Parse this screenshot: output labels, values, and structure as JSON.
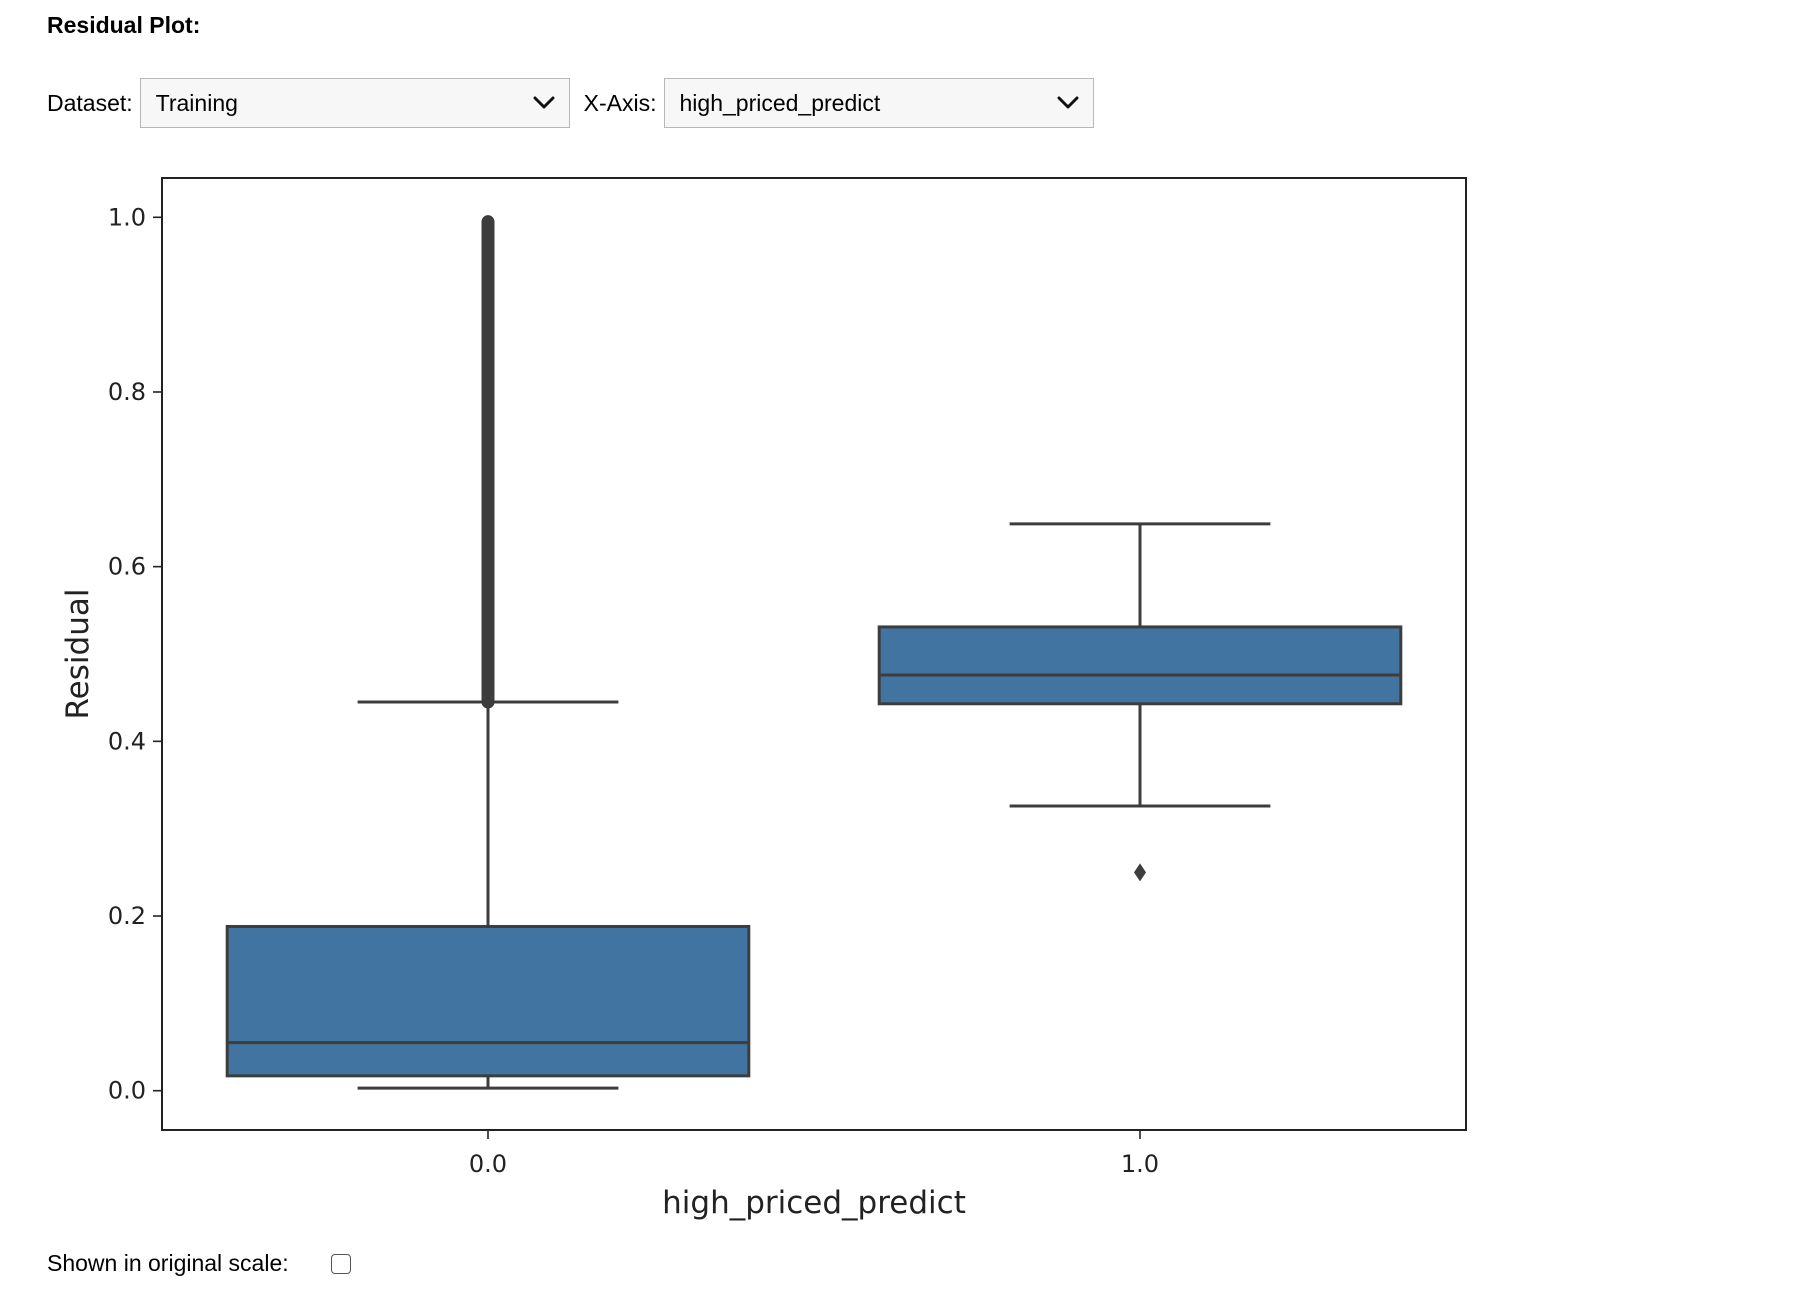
{
  "page": {
    "title": "Residual Plot:",
    "dataset_label": "Dataset:",
    "dataset_value": "Training",
    "xaxis_label": "X-Axis:",
    "xaxis_value": "high_priced_predict",
    "scale_label": "Shown in original scale:",
    "scale_checked": false
  },
  "chart_data": {
    "type": "box",
    "xlabel": "high_priced_predict",
    "ylabel": "Residual",
    "ylim": [
      -0.045,
      1.045
    ],
    "yticks": [
      "0.0",
      "0.2",
      "0.4",
      "0.6",
      "0.8",
      "1.0"
    ],
    "box_color": "#4174a0",
    "line_color": "#3d3d3d",
    "categories": [
      "0.0",
      "1.0"
    ],
    "boxes": [
      {
        "category": "0.0",
        "whisker_low": 0.003,
        "q1": 0.017,
        "median": 0.055,
        "q3": 0.188,
        "whisker_high": 0.445,
        "outliers_range": [
          0.445,
          0.995
        ]
      },
      {
        "category": "1.0",
        "whisker_low": 0.326,
        "q1": 0.443,
        "median": 0.476,
        "q3": 0.531,
        "whisker_high": 0.649,
        "outliers": [
          0.25
        ]
      }
    ]
  }
}
